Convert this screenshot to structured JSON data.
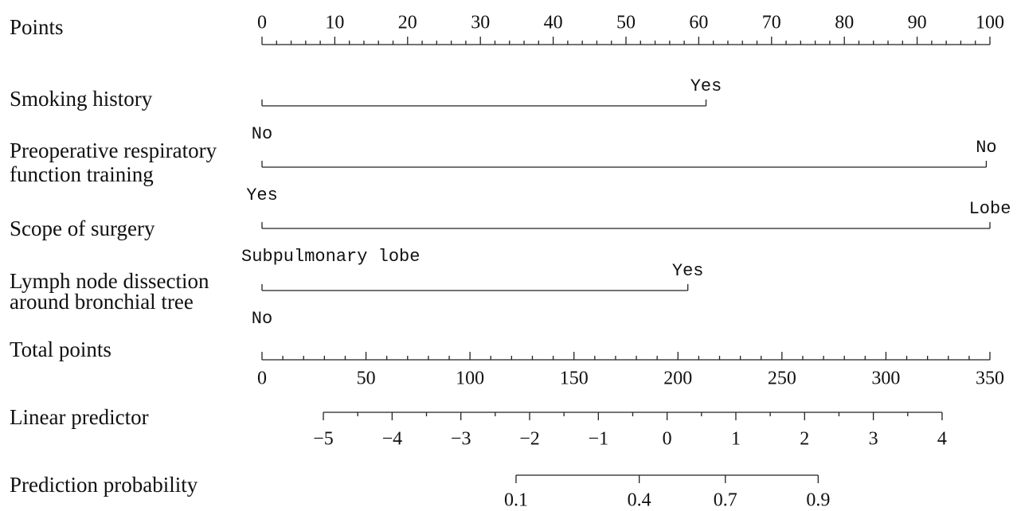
{
  "chart_data": {
    "type": "nomogram",
    "points_axis": {
      "label": "Points",
      "xlim": [
        0,
        100
      ],
      "xticks": [
        0,
        10,
        20,
        30,
        40,
        50,
        60,
        70,
        80,
        90,
        100
      ],
      "minor_step": 2
    },
    "variables": [
      {
        "label": [
          "Smoking history"
        ],
        "levels": [
          {
            "name": "No",
            "points": 0
          },
          {
            "name": "Yes",
            "points": 61
          }
        ]
      },
      {
        "label": [
          "Preoperative respiratory",
          "function training"
        ],
        "levels": [
          {
            "name": "Yes",
            "points": 0
          },
          {
            "name": "No",
            "points": 99.5
          }
        ]
      },
      {
        "label": [
          "Scope of surgery"
        ],
        "levels": [
          {
            "name": "Subpulmonary lobe",
            "points": 0
          },
          {
            "name": "Lobe",
            "points": 100
          }
        ]
      },
      {
        "label": [
          "Lymph node dissection",
          "around bronchial tree"
        ],
        "levels": [
          {
            "name": "No",
            "points": 0
          },
          {
            "name": "Yes",
            "points": 58.5
          }
        ]
      }
    ],
    "total_points_axis": {
      "label": "Total points",
      "xlim": [
        0,
        350
      ],
      "xticks": [
        0,
        50,
        100,
        150,
        200,
        250,
        300,
        350
      ],
      "minor_step": 10
    },
    "linear_predictor": {
      "label": "Linear predictor",
      "xlim": [
        -5,
        4
      ],
      "total_points_range": [
        29.5,
        327
      ],
      "xticks": [
        {
          "value": -5,
          "label": "−5"
        },
        {
          "value": -4,
          "label": "−4"
        },
        {
          "value": -3,
          "label": "−3"
        },
        {
          "value": -2,
          "label": "−2"
        },
        {
          "value": -1,
          "label": "−1"
        },
        0,
        1,
        2,
        3,
        4
      ],
      "minor_step": 0.5
    },
    "probability": {
      "label": "Prediction probability",
      "transform": "logit",
      "xticks": [
        0.1,
        0.4,
        0.7,
        0.9
      ]
    }
  }
}
